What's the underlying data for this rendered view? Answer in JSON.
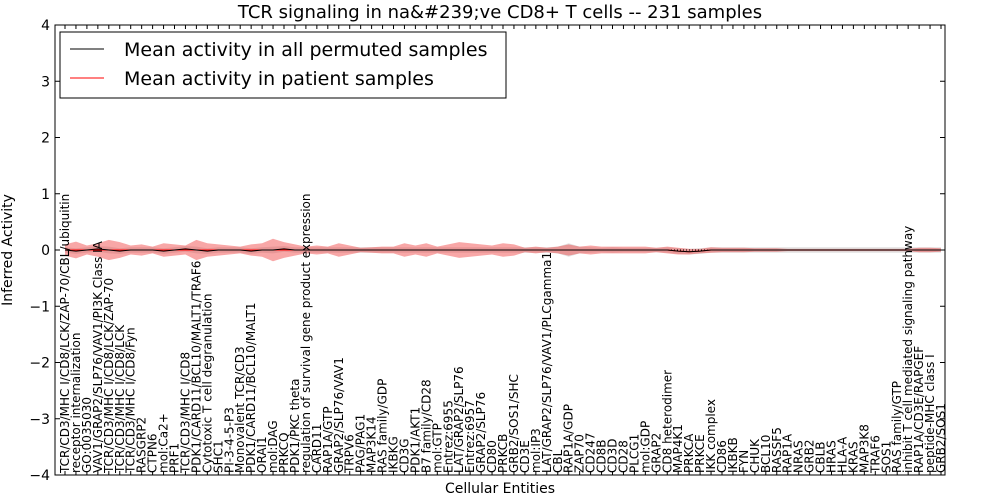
{
  "chart_data": {
    "type": "line",
    "title": "TCR signaling in na&#239;ve CD8+ T cells -- 231 samples",
    "xlabel": "Cellular Entities",
    "ylabel": "Inferred Activity",
    "ylim": [
      -4,
      4
    ],
    "yticks": [
      "4",
      "3",
      "2",
      "1",
      "0",
      "−1",
      "−2",
      "−3",
      "−4"
    ],
    "legend": {
      "location": "top-left",
      "entries": [
        {
          "label": "Mean activity in all permuted samples",
          "color": "#000000"
        },
        {
          "label": "Mean activity in patient samples",
          "color": "#ff0000"
        }
      ]
    },
    "categories": [
      "TCR/CD3/MHC I/CD8/LCK/ZAP-70/CBL/ubiquitin",
      "receptor internalization",
      "GO:0035030",
      "VAV1/GRAP2/SLP76/VAV1/PI3K Class IA",
      "TCR/CD3/MHC I/CD8/LCK/ZAP-70",
      "TCR/CD3/MHC I/CD8/LCK",
      "TCR/CD3/MHC I/CD8/Fyn",
      "RASGRP2",
      "CTPN6",
      "mol:Ca2+",
      "PRF1",
      "TCR/CD3/MHC I/CD8",
      "PDK1/CARD11/BCL10/MALT1/TRAF6",
      "Cytotoxic T cell degranulation",
      "SHC1",
      "PI-3-4-5-P3",
      "Monovalent TCR/CD3",
      "PDK1/CARD11/BCL10/MALT1",
      "ORAI1",
      "mol:DAG",
      "PRKCQ",
      "PDK1/PKC theta",
      "regulation of survival gene product expression",
      "CARD11",
      "RAP1A/GTP",
      "GRAP2/SLP76/VAV1",
      "TRPV6",
      "PAG/PAG1",
      "MAP3K14",
      "RAS family/GDP",
      "IKBKG",
      "CD3G",
      "PDK1/AKT1",
      "B7 family/CD28",
      "mol:GTP",
      "Entrez:6955",
      "LAT/GRAP2/SLP76",
      "Entrez:6957",
      "GRAP2/SLP76",
      "CD80",
      "PRKCB",
      "GRB2/SOS1/SHC",
      "CD3E",
      "mol:IP3",
      "LAT/GRAP2/SLP76/VAV1/PLCgamma1",
      "CBL",
      "RAP1A/GDP",
      "ZAP70",
      "CD247",
      "CD8B",
      "CD3D",
      "CD28",
      "PLCG1",
      "mol:GDP",
      "GRAP2",
      "CD8 heterodimer",
      "MAP4K1",
      "PRKCA",
      "PRKCE",
      "IKK complex",
      "CD86",
      "IKBKB",
      "FYN",
      "CHUK",
      "BCL10",
      "RASSF5",
      "RAP1A",
      "NRAS",
      "GRB2",
      "CBLB",
      "HRAS",
      "HLA-A",
      "KRAS",
      "MAP3K8",
      "TRAF6",
      "SOS1",
      "RAS family/GTP",
      "inhibit T cell mediated signaling pathway",
      "RAP1A/CD3E/RAPGEF",
      "peptide-MHC class I",
      "GRB2/SOS1"
    ],
    "patient_mean": [
      0,
      0,
      0,
      0,
      0,
      0,
      0,
      0,
      0,
      0,
      0,
      0,
      0,
      0,
      0,
      0,
      0,
      0,
      0,
      0,
      0,
      0,
      0,
      0,
      0,
      0,
      0,
      0,
      0,
      0,
      0,
      0,
      0,
      0,
      0,
      0,
      0,
      0,
      0,
      0,
      0,
      0,
      0,
      0,
      0,
      0,
      0,
      0,
      0,
      0,
      0,
      0,
      0,
      0,
      0,
      0,
      -0.02,
      -0.03,
      -0.02,
      0,
      0,
      0,
      0,
      0,
      0,
      0,
      0,
      0,
      0,
      0,
      0,
      0,
      0,
      0,
      0,
      0,
      0,
      0,
      0,
      0,
      0
    ],
    "patient_band": [
      0.1,
      0.15,
      0.08,
      0.12,
      0.18,
      0.14,
      0.08,
      0.1,
      0.06,
      0.12,
      0.1,
      0.08,
      0.18,
      0.12,
      0.1,
      0.08,
      0.06,
      0.1,
      0.12,
      0.2,
      0.14,
      0.1,
      0.06,
      0.08,
      0.06,
      0.12,
      0.08,
      0.04,
      0.05,
      0.06,
      0.06,
      0.12,
      0.08,
      0.12,
      0.06,
      0.1,
      0.14,
      0.12,
      0.1,
      0.08,
      0.12,
      0.1,
      0.04,
      0.06,
      0.04,
      0.06,
      0.1,
      0.06,
      0.08,
      0.06,
      0.06,
      0.06,
      0.06,
      0.06,
      0.04,
      0.06,
      0.06,
      0.05,
      0.04,
      0.05,
      0.04,
      0.04,
      0.04,
      0.03,
      0.03,
      0.03,
      0.02,
      0.02,
      0.02,
      0.02,
      0.02,
      0.02,
      0.02,
      0.02,
      0.02,
      0.02,
      0.02,
      0.02,
      0.04,
      0.04,
      0.03
    ],
    "permuted_mean": [
      0,
      -0.02,
      0,
      0.02,
      0,
      -0.02,
      0,
      0,
      0,
      -0.02,
      0,
      0.02,
      0,
      -0.02,
      0,
      0,
      0,
      -0.02,
      0,
      0,
      0.02,
      0,
      0,
      0,
      0,
      0,
      0,
      0,
      0,
      0,
      0,
      0,
      0,
      0,
      0,
      0,
      0,
      0,
      0,
      0,
      0,
      0,
      0,
      0,
      0,
      0,
      0,
      0,
      0,
      0,
      0,
      0,
      0,
      0,
      0,
      0,
      -0.02,
      -0.03,
      -0.02,
      0,
      0,
      0,
      0,
      0,
      0,
      0,
      0,
      0,
      0,
      0,
      0,
      0,
      0,
      0,
      0,
      0,
      0,
      0,
      0,
      0,
      0
    ],
    "permuted_band": [
      0.05,
      0.05,
      0.05,
      0.05,
      0.06,
      0.05,
      0.05,
      0.05,
      0.05,
      0.05,
      0.05,
      0.05,
      0.06,
      0.05,
      0.05,
      0.05,
      0.05,
      0.05,
      0.05,
      0.06,
      0.05,
      0.05,
      0.05,
      0.05,
      0.05,
      0.05,
      0.05,
      0.05,
      0.05,
      0.05,
      0.05,
      0.05,
      0.05,
      0.05,
      0.05,
      0.05,
      0.05,
      0.05,
      0.05,
      0.05,
      0.05,
      0.05,
      0.05,
      0.05,
      0.05,
      0.06,
      0.12,
      0.06,
      0.05,
      0.04,
      0.05,
      0.04,
      0.04,
      0.04,
      0.04,
      0.05,
      0.05,
      0.05,
      0.05,
      0.05,
      0.05,
      0.05,
      0.05,
      0.05,
      0.05,
      0.05,
      0.05,
      0.05,
      0.05,
      0.05,
      0.05,
      0.05,
      0.05,
      0.05,
      0.05,
      0.05,
      0.05,
      0.05,
      0.05,
      0.05,
      0.05
    ]
  }
}
